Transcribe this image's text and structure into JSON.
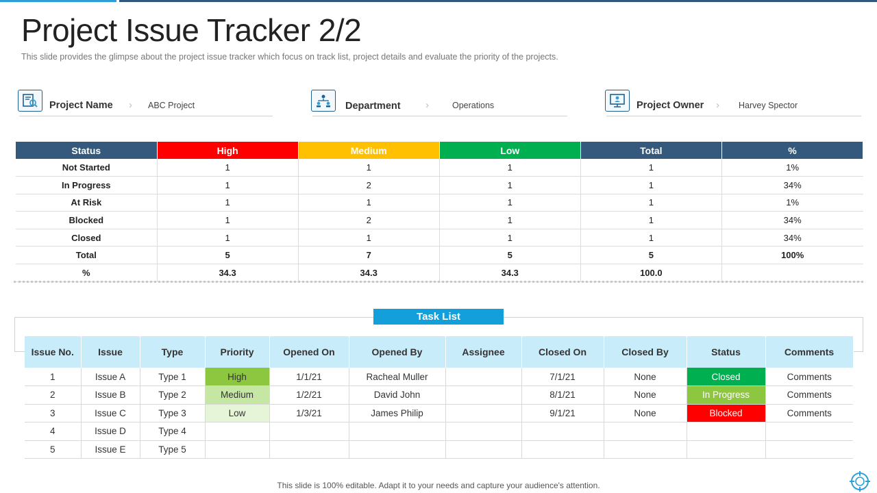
{
  "header": {
    "title": "Project Issue Tracker 2/2",
    "subtitle": "This slide provides  the glimpse about the project issue tracker which focus on track list, project details and evaluate  the priority of the projects."
  },
  "info": [
    {
      "label": "Project Name",
      "value": "ABC Project",
      "icon": "project-search-icon"
    },
    {
      "label": "Department",
      "value": "Operations",
      "icon": "team-structure-icon"
    },
    {
      "label": "Project Owner",
      "value": "Harvey Spector",
      "icon": "owner-board-icon"
    }
  ],
  "summary": {
    "headers": [
      "Status",
      "High",
      "Medium",
      "Low",
      "Total",
      "%"
    ],
    "header_colors": [
      "#34597d",
      "#ff0000",
      "#ffc000",
      "#00b050",
      "#34597d",
      "#34597d"
    ],
    "rows": [
      [
        "Not Started",
        "1",
        "1",
        "1",
        "1",
        "1%"
      ],
      [
        "In Progress",
        "1",
        "2",
        "1",
        "1",
        "34%"
      ],
      [
        "At Risk",
        "1",
        "1",
        "1",
        "1",
        "1%"
      ],
      [
        "Blocked",
        "1",
        "2",
        "1",
        "1",
        "34%"
      ],
      [
        "Closed",
        "1",
        "1",
        "1",
        "1",
        "34%"
      ],
      [
        "Total",
        "5",
        "7",
        "5",
        "5",
        "100%"
      ],
      [
        "%",
        "34.3",
        "34.3",
        "34.3",
        "100.0",
        ""
      ]
    ]
  },
  "tasks": {
    "title": "Task List",
    "headers": [
      "Issue No.",
      "Issue",
      "Type",
      "Priority",
      "Opened On",
      "Opened By",
      "Assignee",
      "Closed On",
      "Closed By",
      "Status",
      "Comments"
    ],
    "rows": [
      [
        "1",
        "Issue A",
        "Type 1",
        "High",
        "1/1/21",
        "Racheal Muller",
        "",
        "7/1/21",
        "None",
        "Closed",
        "Comments"
      ],
      [
        "2",
        "Issue B",
        "Type 2",
        "Medium",
        "1/2/21",
        "David  John",
        "",
        "8/1/21",
        "None",
        "In Progress",
        "Comments"
      ],
      [
        "3",
        "Issue C",
        "Type 3",
        "Low",
        "1/3/21",
        "James Philip",
        "",
        "9/1/21",
        "None",
        "Blocked",
        "Comments"
      ],
      [
        "4",
        "Issue D",
        "Type 4",
        "",
        "",
        "",
        "",
        "",
        "",
        "",
        ""
      ],
      [
        "5",
        "Issue E",
        "Type 5",
        "",
        "",
        "",
        "",
        "",
        "",
        "",
        ""
      ]
    ],
    "priority_colors": {
      "High": "#8dc63f",
      "Medium": "#c6e6a4",
      "Low": "#e6f4d7"
    },
    "status_colors": {
      "Closed": "#00b050",
      "In Progress": "#8dc63f",
      "Blocked": "#ff0000"
    }
  },
  "footer": {
    "text": "This slide is 100% editable. Adapt it to your needs and capture your audience's attention."
  }
}
